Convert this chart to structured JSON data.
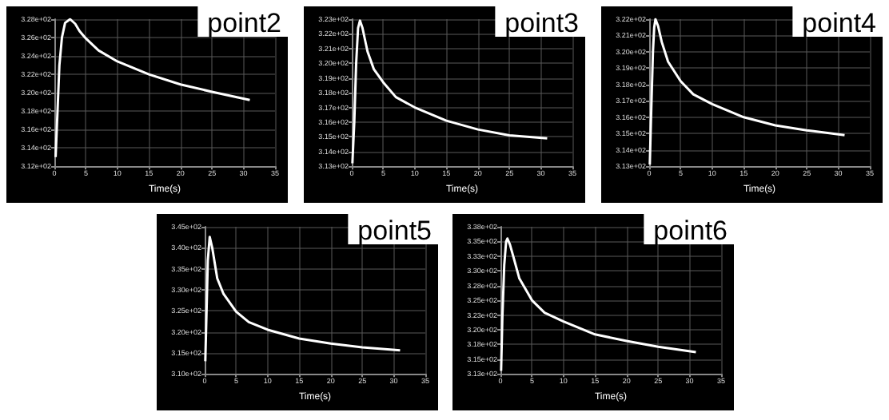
{
  "chart_data": [
    {
      "type": "line",
      "title": "point2",
      "xlabel": "Time(s)",
      "x": [
        0.2,
        0.5,
        0.8,
        1.2,
        1.7,
        2.5,
        3.3,
        4,
        5,
        7,
        10,
        15,
        20,
        25,
        31
      ],
      "series": [
        {
          "color": "#ffffff",
          "values": [
            313,
            318,
            323,
            326,
            327.6,
            328,
            327.5,
            326.7,
            325.9,
            324.6,
            323.4,
            322,
            320.9,
            320.1,
            319.2
          ]
        }
      ],
      "xlim": [
        0,
        35
      ],
      "xticks": [
        0,
        5,
        10,
        15,
        20,
        25,
        30,
        35
      ],
      "ylim": [
        312,
        328
      ],
      "yticks": [
        {
          "value": 312,
          "label": "3.12e+02"
        },
        {
          "value": 314,
          "label": "3.14e+02"
        },
        {
          "value": 316,
          "label": "3.16e+02"
        },
        {
          "value": 318,
          "label": "3.18e+02"
        },
        {
          "value": 320,
          "label": "3.20e+02"
        },
        {
          "value": 322,
          "label": "3.22e+02"
        },
        {
          "value": 324,
          "label": "3.24e+02"
        },
        {
          "value": 326,
          "label": "3.26e+02"
        },
        {
          "value": 328,
          "label": "3.28e+02"
        }
      ],
      "grid": true
    },
    {
      "type": "line",
      "title": "point3",
      "xlabel": "Time(s)",
      "x": [
        0.1,
        0.4,
        0.7,
        1,
        1.3,
        1.7,
        2.5,
        3.5,
        5,
        7,
        10,
        15,
        20,
        25,
        31
      ],
      "series": [
        {
          "color": "#ffffff",
          "values": [
            313.2,
            316,
            320,
            322.4,
            322.9,
            322.4,
            320.8,
            319.6,
            318.7,
            317.7,
            317,
            316.1,
            315.5,
            315.1,
            314.9
          ]
        }
      ],
      "xlim": [
        0,
        35
      ],
      "xticks": [
        0,
        5,
        10,
        15,
        20,
        25,
        30,
        35
      ],
      "ylim": [
        313,
        323
      ],
      "yticks": [
        {
          "value": 313,
          "label": "3.13e+02"
        },
        {
          "value": 314,
          "label": "3.14e+02"
        },
        {
          "value": 315,
          "label": "3.15e+02"
        },
        {
          "value": 316,
          "label": "3.16e+02"
        },
        {
          "value": 317,
          "label": "3.17e+02"
        },
        {
          "value": 318,
          "label": "3.18e+02"
        },
        {
          "value": 319,
          "label": "3.19e+02"
        },
        {
          "value": 320,
          "label": "3.20e+02"
        },
        {
          "value": 321,
          "label": "3.21e+02"
        },
        {
          "value": 322,
          "label": "3.22e+02"
        },
        {
          "value": 323,
          "label": "3.23e+02"
        }
      ],
      "grid": true
    },
    {
      "type": "line",
      "title": "point4",
      "xlabel": "Time(s)",
      "x": [
        0.1,
        0.3,
        0.6,
        0.8,
        1,
        1.4,
        2,
        3,
        5,
        7,
        10,
        15,
        20,
        25,
        31
      ],
      "series": [
        {
          "color": "#ffffff",
          "values": [
            313.1,
            316,
            320,
            321.5,
            322,
            321.6,
            320.6,
            319.4,
            318.2,
            317.4,
            316.8,
            316,
            315.5,
            315.2,
            314.9
          ]
        }
      ],
      "xlim": [
        0,
        35
      ],
      "xticks": [
        0,
        5,
        10,
        15,
        20,
        25,
        30,
        35
      ],
      "ylim": [
        313,
        322
      ],
      "yticks": [
        {
          "value": 313,
          "label": "3.13e+02"
        },
        {
          "value": 314,
          "label": "3.14e+02"
        },
        {
          "value": 315,
          "label": "3.15e+02"
        },
        {
          "value": 316,
          "label": "3.16e+02"
        },
        {
          "value": 317,
          "label": "3.17e+02"
        },
        {
          "value": 318,
          "label": "3.18e+02"
        },
        {
          "value": 319,
          "label": "3.19e+02"
        },
        {
          "value": 320,
          "label": "3.20e+02"
        },
        {
          "value": 321,
          "label": "3.21e+02"
        },
        {
          "value": 322,
          "label": "3.22e+02"
        }
      ],
      "grid": true
    },
    {
      "type": "line",
      "title": "point5",
      "xlabel": "Time(s)",
      "x": [
        0.1,
        0.3,
        0.5,
        0.8,
        1.2,
        2,
        3,
        5,
        7,
        10,
        15,
        20,
        25,
        31
      ],
      "series": [
        {
          "color": "#ffffff",
          "values": [
            313,
            325,
            337,
            342.6,
            340,
            332.7,
            329,
            324.8,
            322.3,
            320.5,
            318.4,
            317.2,
            316.3,
            315.6
          ]
        }
      ],
      "xlim": [
        0,
        35
      ],
      "xticks": [
        0,
        5,
        10,
        15,
        20,
        25,
        30,
        35
      ],
      "ylim": [
        310,
        345
      ],
      "yticks": [
        {
          "value": 310,
          "label": "3.10e+02"
        },
        {
          "value": 315,
          "label": "3.15e+02"
        },
        {
          "value": 320,
          "label": "3.20e+02"
        },
        {
          "value": 325,
          "label": "3.25e+02"
        },
        {
          "value": 330,
          "label": "3.30e+02"
        },
        {
          "value": 335,
          "label": "3.35e+02"
        },
        {
          "value": 340,
          "label": "3.40e+02"
        },
        {
          "value": 345,
          "label": "3.45e+02"
        }
      ],
      "grid": true
    },
    {
      "type": "line",
      "title": "point6",
      "xlabel": "Time(s)",
      "x": [
        0.1,
        0.3,
        0.6,
        0.9,
        1.1,
        1.5,
        2,
        3,
        5,
        7,
        10,
        15,
        20,
        25,
        31
      ],
      "series": [
        {
          "color": "#ffffff",
          "values": [
            313,
            322,
            331,
            335,
            335.5,
            334.5,
            332.6,
            328.7,
            325,
            322.9,
            321.4,
            319.2,
            318.1,
            317.1,
            316.2
          ]
        }
      ],
      "xlim": [
        0,
        35
      ],
      "xticks": [
        0,
        5,
        10,
        15,
        20,
        25,
        30,
        35
      ],
      "ylim": [
        312.5,
        337.5
      ],
      "yticks": [
        {
          "value": 312.5,
          "label": "3.13e+02"
        },
        {
          "value": 315,
          "label": "3.15e+02"
        },
        {
          "value": 317.5,
          "label": "3.18e+02"
        },
        {
          "value": 320,
          "label": "3.20e+02"
        },
        {
          "value": 322.5,
          "label": "3.23e+02"
        },
        {
          "value": 325,
          "label": "3.25e+02"
        },
        {
          "value": 327.5,
          "label": "3.28e+02"
        },
        {
          "value": 330,
          "label": "3.30e+02"
        },
        {
          "value": 332.5,
          "label": "3.33e+02"
        },
        {
          "value": 335,
          "label": "3.35e+02"
        },
        {
          "value": 337.5,
          "label": "3.38e+02"
        }
      ],
      "grid": true
    }
  ]
}
